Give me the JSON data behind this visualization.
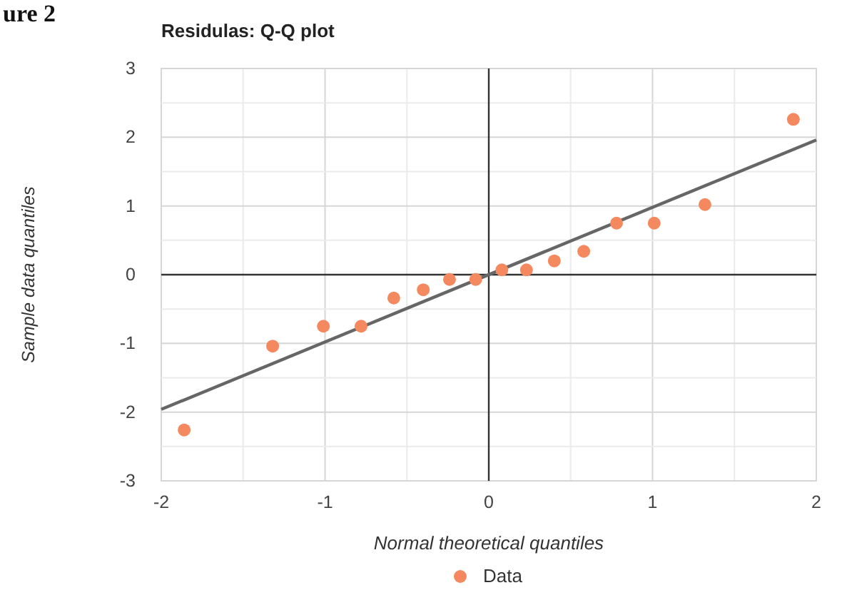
{
  "chart_data": {
    "type": "scatter",
    "title": "Residulas: Q-Q plot",
    "xlabel": "Normal theoretical quantiles",
    "ylabel": "Sample data quantiles",
    "annotations": [
      "ure 2"
    ],
    "xlim": [
      -2,
      2
    ],
    "ylim": [
      -3,
      3
    ],
    "xticks": [
      -2,
      {
        "value": -1.5,
        "label": null
      },
      -1,
      {
        "value": -0.5,
        "label": null
      },
      0,
      {
        "value": 0.5,
        "label": null
      },
      1,
      {
        "value": 1.5,
        "label": null
      },
      2
    ],
    "yticks": [
      -3,
      {
        "value": -2.5,
        "label": null
      },
      -2,
      {
        "value": -1.5,
        "label": null
      },
      -1,
      {
        "value": -0.5,
        "label": null
      },
      0,
      {
        "value": 0.5,
        "label": null
      },
      1,
      {
        "value": 1.5,
        "label": null
      },
      2,
      {
        "value": 2.5,
        "label": null
      },
      3
    ],
    "grid": true,
    "legend": "bottom",
    "marker": "circle",
    "series": [
      {
        "name": "Data",
        "color": "#f4895f",
        "x": [
          -1.86,
          -1.32,
          -1.01,
          -0.78,
          -0.58,
          -0.4,
          -0.24,
          -0.08,
          0.08,
          0.23,
          0.4,
          0.58,
          0.78,
          1.01,
          1.32,
          1.86
        ],
        "values": [
          -2.26,
          -1.04,
          -0.75,
          -0.75,
          -0.34,
          -0.22,
          -0.07,
          -0.07,
          0.07,
          0.07,
          0.2,
          0.34,
          0.75,
          0.75,
          1.02,
          2.26
        ]
      },
      {
        "type": "line",
        "color": "#666666",
        "line_style": "solid",
        "marker": "none",
        "x": [
          -2,
          2
        ],
        "values": [
          -1.96,
          1.96
        ]
      }
    ]
  }
}
